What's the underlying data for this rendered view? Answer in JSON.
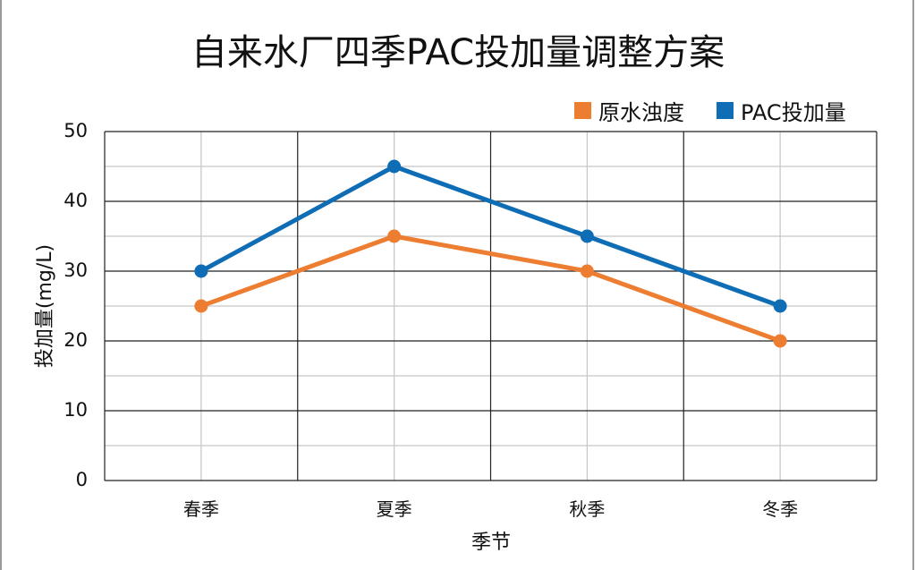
{
  "chart_data": {
    "type": "line",
    "title": "自来水厂四季PAC投加量调整方案",
    "xlabel": "季节",
    "ylabel": "投加量(mg/L)",
    "categories": [
      "春季",
      "夏季",
      "秋季",
      "冬季"
    ],
    "series": [
      {
        "name": "原水浊度",
        "color": "#ED7D31",
        "values": [
          25,
          35,
          30,
          20
        ]
      },
      {
        "name": "PAC投加量",
        "color": "#0F6DB5",
        "values": [
          30,
          45,
          35,
          25
        ]
      }
    ],
    "ylim": [
      0,
      50
    ],
    "yticks": [
      0,
      10,
      20,
      30,
      40,
      50
    ],
    "grid": true,
    "legend_position": "top-right"
  },
  "legend": [
    {
      "label": "原水浊度",
      "color": "#ED7D31"
    },
    {
      "label": "PAC投加量",
      "color": "#0F6DB5"
    }
  ]
}
